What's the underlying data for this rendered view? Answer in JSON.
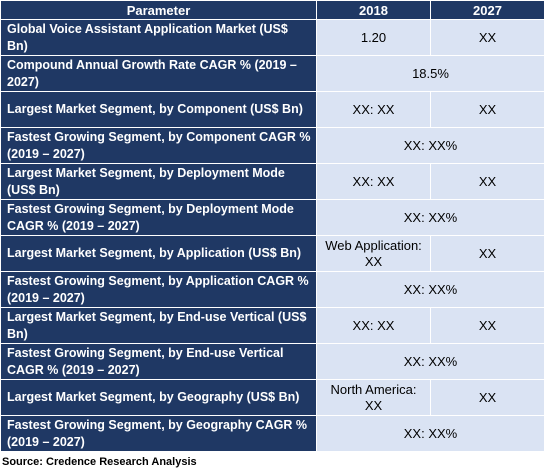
{
  "header": {
    "parameter": "Parameter",
    "year1": "2018",
    "year2": "2027"
  },
  "rows": [
    {
      "parameter": "Global Voice Assistant Application Market (US$ Bn)",
      "v2018": "1.20",
      "v2027": "XX"
    },
    {
      "parameter": "Compound Annual Growth Rate CAGR % (2019 – 2027)",
      "span": "18.5%"
    },
    {
      "parameter": "Largest Market Segment, by Component (US$ Bn)",
      "v2018": "XX: XX",
      "v2027": "XX"
    },
    {
      "parameter": "Fastest Growing Segment, by Component CAGR % (2019 – 2027)",
      "span": "XX: XX%"
    },
    {
      "parameter": "Largest Market Segment, by Deployment Mode (US$ Bn)",
      "v2018": "XX: XX",
      "v2027": "XX"
    },
    {
      "parameter": "Fastest Growing Segment, by Deployment Mode CAGR % (2019 – 2027)",
      "span": "XX: XX%"
    },
    {
      "parameter": "Largest Market Segment, by Application (US$ Bn)",
      "v2018": "Web Application: XX",
      "v2027": "XX"
    },
    {
      "parameter": "Fastest Growing Segment, by Application CAGR % (2019 – 2027)",
      "span": "XX: XX%"
    },
    {
      "parameter": "Largest Market Segment, by End-use Vertical (US$ Bn)",
      "v2018": "XX: XX",
      "v2027": "XX"
    },
    {
      "parameter": "Fastest Growing Segment, by End-use Vertical CAGR % (2019 – 2027)",
      "span": "XX: XX%"
    },
    {
      "parameter": "Largest Market Segment, by Geography (US$ Bn)",
      "v2018": "North America: XX",
      "v2027": "XX"
    },
    {
      "parameter": "Fastest Growing Segment, by Geography CAGR % (2019 – 2027)",
      "span": "XX: XX%"
    }
  ],
  "source": "Source: Credence Research Analysis",
  "colors": {
    "header_bg": "#1f3864",
    "value_bg": "#dae3f3"
  }
}
